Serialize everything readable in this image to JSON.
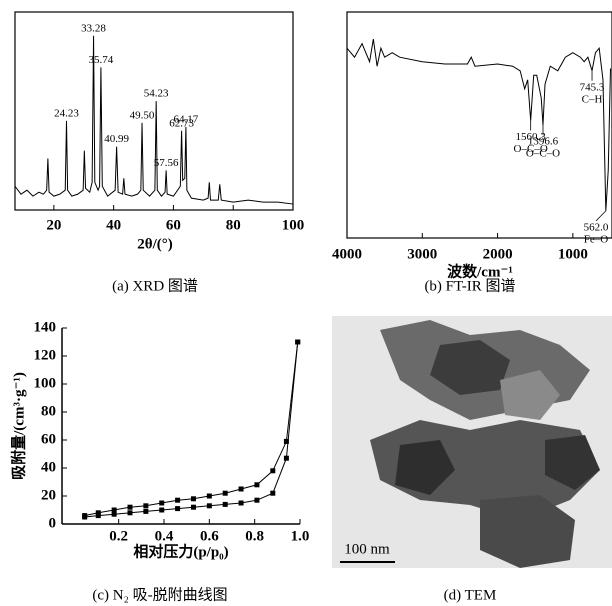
{
  "chart_data": [
    {
      "type": "line",
      "caption": "(a) XRD 图谱",
      "xlabel": "2θ/(°)",
      "color": "#000000",
      "x": [
        7,
        9,
        11,
        13,
        15,
        16.5,
        17.6,
        18,
        18.4,
        20,
        22,
        23.8,
        24.23,
        24.6,
        26,
        28,
        29.8,
        30.2,
        30.6,
        32,
        32.8,
        33.28,
        33.7,
        34.8,
        35.3,
        35.74,
        36.2,
        38,
        40.5,
        40.99,
        41.5,
        43,
        43.4,
        43.8,
        46,
        48,
        49.1,
        49.5,
        49.9,
        52,
        53.8,
        54.23,
        54.6,
        56,
        57.2,
        57.56,
        57.9,
        60,
        62.3,
        62.73,
        63.1,
        63.8,
        64.17,
        64.5,
        66,
        70,
        71.6,
        72,
        72.4,
        75,
        75.5,
        76,
        80,
        85,
        90,
        95,
        100
      ],
      "values": [
        12,
        8,
        10,
        7,
        9,
        8,
        10,
        26,
        9,
        7,
        8,
        10,
        45,
        10,
        7,
        8,
        10,
        30,
        11,
        9,
        14,
        88,
        14,
        10,
        12,
        72,
        12,
        7,
        10,
        32,
        9,
        8,
        16,
        8,
        7,
        8,
        10,
        44,
        10,
        7,
        10,
        55,
        10,
        7,
        9,
        20,
        8,
        7,
        12,
        40,
        15,
        16,
        42,
        10,
        6,
        5,
        6,
        14,
        5,
        5,
        13,
        5,
        4,
        5,
        4,
        4,
        3
      ],
      "xlim": [
        7,
        100
      ],
      "ylim": [
        0,
        100
      ],
      "xticks": [
        20,
        40,
        60,
        80,
        100
      ],
      "annotations": [
        {
          "text": "24.23",
          "x": 24.23,
          "y": 45
        },
        {
          "text": "33.28",
          "x": 33.28,
          "y": 88
        },
        {
          "text": "35.74",
          "x": 35.74,
          "y": 72
        },
        {
          "text": "40.99",
          "x": 40.99,
          "y": 32
        },
        {
          "text": "49.50",
          "x": 49.5,
          "y": 44
        },
        {
          "text": "54.23",
          "x": 54.23,
          "y": 55
        },
        {
          "text": "57.56",
          "x": 57.56,
          "y": 20
        },
        {
          "text": "62.73",
          "x": 62.73,
          "y": 40
        },
        {
          "text": "64.17",
          "x": 64.17,
          "y": 42
        }
      ]
    },
    {
      "type": "line",
      "caption": "(b) FT-IR 图谱",
      "xlabel": "波数/cm⁻¹",
      "color": "#000000",
      "x": [
        4000,
        3900,
        3800,
        3700,
        3650,
        3600,
        3550,
        3500,
        3400,
        3300,
        3000,
        2700,
        2400,
        2350,
        2300,
        2000,
        1800,
        1700,
        1640,
        1600,
        1560.3,
        1520,
        1480,
        1420,
        1396.6,
        1370,
        1300,
        1200,
        1100,
        1000,
        900,
        850,
        800,
        745.3,
        700,
        650,
        600,
        562,
        530,
        500
      ],
      "values": [
        84,
        80,
        86,
        78,
        88,
        76,
        84,
        80,
        82,
        80,
        78,
        77,
        77,
        80,
        76,
        77,
        76,
        74,
        66,
        70,
        52,
        72,
        72,
        62,
        50,
        68,
        76,
        74,
        80,
        82,
        80,
        78,
        80,
        74,
        82,
        84,
        70,
        12,
        30,
        75
      ],
      "xlim": [
        4000,
        480
      ],
      "ylim": [
        0,
        100
      ],
      "xticks": [
        4000,
        3000,
        2000,
        1000
      ],
      "annotations": [
        {
          "text": "1560.3",
          "group": "O–C–O",
          "x": 1560.3,
          "y": 52
        },
        {
          "text": "1396.6",
          "group": "O–C–O",
          "x": 1396.6,
          "y": 50
        },
        {
          "text": "745.3",
          "group": "C–H",
          "x": 745.3,
          "y": 74
        },
        {
          "text": "562.0",
          "group": "Fe–O",
          "x": 562,
          "y": 12
        }
      ]
    },
    {
      "type": "line",
      "caption": "(c) N₂ 吸-脱附曲线图",
      "xlabel": "相对压力(p/p₀)",
      "ylabel": "吸附量/(cm³·g⁻¹)",
      "marker": "square",
      "x": [
        0.05,
        0.11,
        0.18,
        0.25,
        0.32,
        0.39,
        0.46,
        0.53,
        0.6,
        0.67,
        0.74,
        0.81,
        0.88,
        0.94,
        0.99
      ],
      "series": [
        {
          "color": "#000000",
          "values": [
            5,
            6,
            7,
            8,
            9,
            10,
            11,
            12,
            13,
            14,
            15,
            17,
            22,
            47,
            130
          ]
        },
        {
          "color": "#000000",
          "values": [
            6,
            8,
            10,
            12,
            13,
            15,
            17,
            18,
            20,
            22,
            25,
            28,
            38,
            59,
            130
          ]
        }
      ],
      "xlim": [
        -0.05,
        1.0
      ],
      "ylim": [
        0,
        140
      ],
      "xticks": [
        0.2,
        0.4,
        0.6,
        0.8,
        {
          "value": 1.0,
          "label": "1.0"
        }
      ],
      "yticks": [
        0,
        20,
        40,
        60,
        80,
        100,
        120,
        140
      ]
    }
  ],
  "image": {
    "scale_bar": "100 nm",
    "caption": "(d) TEM"
  }
}
